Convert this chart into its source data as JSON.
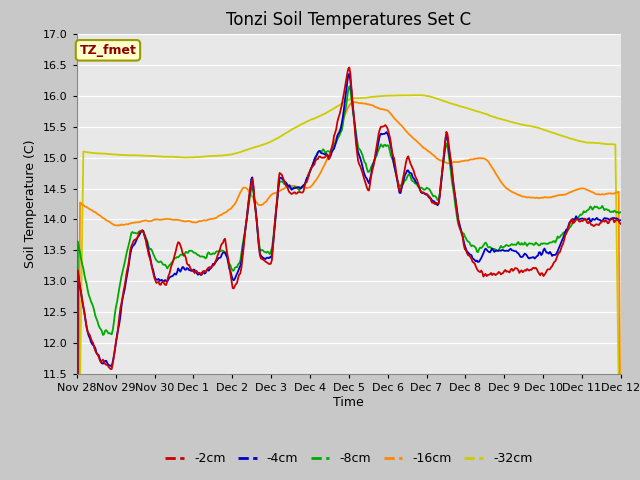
{
  "title": "Tonzi Soil Temperatures Set C",
  "xlabel": "Time",
  "ylabel": "Soil Temperature (C)",
  "annotation": "TZ_fmet",
  "ylim": [
    11.5,
    17.0
  ],
  "yticks": [
    11.5,
    12.0,
    12.5,
    13.0,
    13.5,
    14.0,
    14.5,
    15.0,
    15.5,
    16.0,
    16.5,
    17.0
  ],
  "xtick_labels": [
    "Nov 28",
    "Nov 29",
    "Nov 30",
    "Dec 1",
    "Dec 2",
    "Dec 3",
    "Dec 4",
    "Dec 5",
    "Dec 6",
    "Dec 7",
    "Dec 8",
    "Dec 9",
    "Dec 10",
    "Dec 11",
    "Dec 12"
  ],
  "series": {
    "2cm": {
      "color": "#cc0000",
      "label": "-2cm"
    },
    "4cm": {
      "color": "#0000cc",
      "label": "-4cm"
    },
    "8cm": {
      "color": "#00aa00",
      "label": "-8cm"
    },
    "16cm": {
      "color": "#ff8800",
      "label": "-16cm"
    },
    "32cm": {
      "color": "#cccc00",
      "label": "-32cm"
    }
  },
  "fig_bg": "#c8c8c8",
  "plot_bg": "#e8e8e8",
  "grid_color": "#ffffff",
  "title_fontsize": 12,
  "axis_fontsize": 9,
  "tick_fontsize": 8,
  "legend_fontsize": 9
}
